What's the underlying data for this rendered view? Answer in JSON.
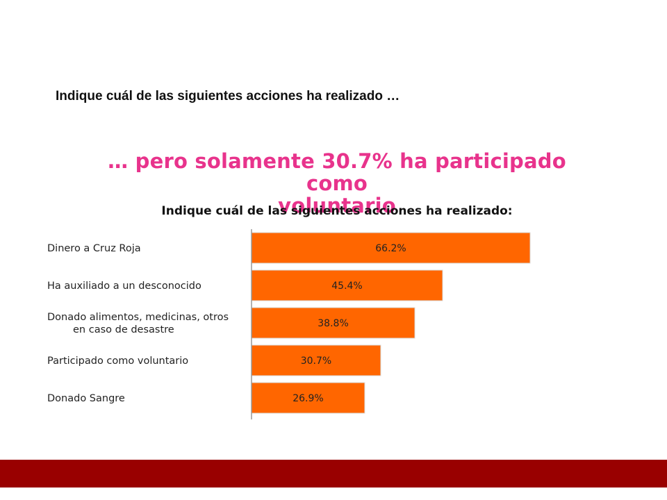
{
  "slide": {
    "title": "Indique cuál de las siguientes acciones ha realizado …"
  },
  "headline": {
    "line1": "… pero solamente 30.7% ha participado como",
    "line2": "voluntario"
  },
  "colors": {
    "headline": "#e8338c",
    "bar": "#ff6600",
    "bar_edge": "#d9d9d9",
    "axis": "#999999",
    "footer": "#990000"
  },
  "chart_data": {
    "type": "bar",
    "orientation": "horizontal",
    "title": "Indique cuál de las siguientes acciones ha realizado:",
    "categories": [
      [
        "Dinero a Cruz Roja"
      ],
      [
        "Ha auxiliado a un desconocido"
      ],
      [
        "Donado alimentos, medicinas, otros",
        "en caso de desastre"
      ],
      [
        "Participado como voluntario"
      ],
      [
        "Donado Sangre"
      ]
    ],
    "values": [
      66.2,
      45.4,
      38.8,
      30.7,
      26.9
    ],
    "value_labels": [
      "66.2%",
      "45.4%",
      "38.8%",
      "30.7%",
      "26.9%"
    ],
    "unit": "%",
    "xlim": [
      0,
      100
    ],
    "grid": false,
    "legend": "none"
  }
}
